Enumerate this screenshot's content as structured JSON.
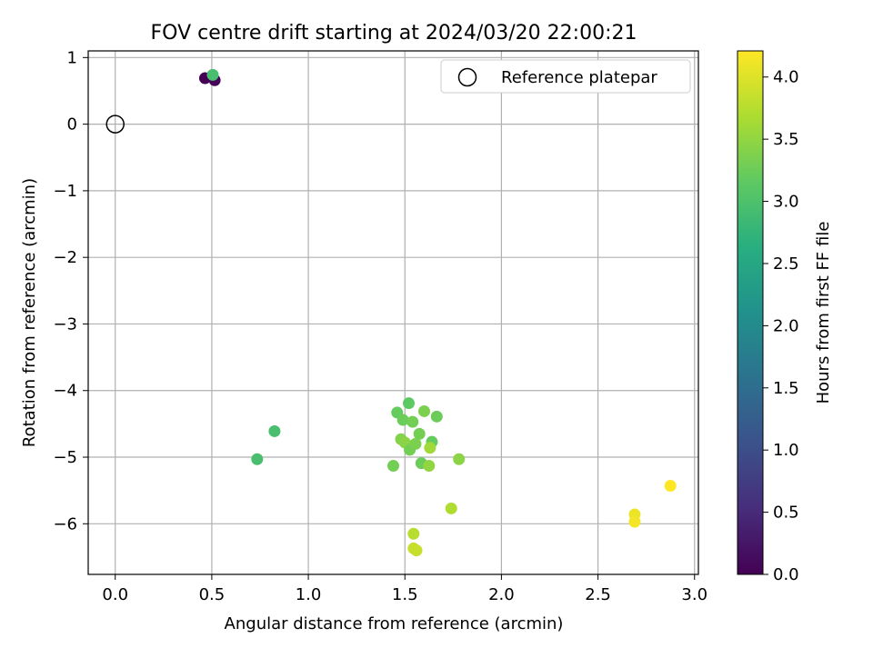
{
  "chart_data": {
    "type": "scatter",
    "title": "FOV centre drift starting at 2024/03/20 22:00:21",
    "xlabel": "Angular distance from reference (arcmin)",
    "ylabel": "Rotation from reference (arcmin)",
    "xlim": [
      -0.14,
      3.02
    ],
    "ylim": [
      -6.76,
      1.1
    ],
    "xticks": [
      0.0,
      0.5,
      1.0,
      1.5,
      2.0,
      2.5,
      3.0
    ],
    "xtick_labels": [
      "0.0",
      "0.5",
      "1.0",
      "1.5",
      "2.0",
      "2.5",
      "3.0"
    ],
    "yticks": [
      1,
      0,
      -1,
      -2,
      -3,
      -4,
      -5,
      -6
    ],
    "ytick_labels": [
      "1",
      "0",
      "−1",
      "−2",
      "−3",
      "−4",
      "−5",
      "−6"
    ],
    "grid": true,
    "legend": {
      "position": "top-right",
      "entries": [
        "Reference platepar"
      ]
    },
    "reference_point": {
      "x": 0.0,
      "y": 0.0
    },
    "colorbar": {
      "label": "Hours from first FF file",
      "colormap": "viridis",
      "range": [
        0.0,
        4.21
      ],
      "ticks": [
        0.0,
        0.5,
        1.0,
        1.5,
        2.0,
        2.5,
        3.0,
        3.5,
        4.0
      ],
      "tick_labels": [
        "0.0",
        "0.5",
        "1.0",
        "1.5",
        "2.0",
        "2.5",
        "3.0",
        "3.5",
        "4.0"
      ]
    },
    "points": [
      {
        "x": 0.465,
        "y": 0.69,
        "c": 0.0
      },
      {
        "x": 0.515,
        "y": 0.66,
        "c": 0.05
      },
      {
        "x": 0.505,
        "y": 0.74,
        "c": 2.95
      },
      {
        "x": 0.825,
        "y": -4.61,
        "c": 2.95
      },
      {
        "x": 0.735,
        "y": -5.03,
        "c": 2.95
      },
      {
        "x": 1.52,
        "y": -4.19,
        "c": 3.15
      },
      {
        "x": 1.46,
        "y": -4.33,
        "c": 3.2
      },
      {
        "x": 1.49,
        "y": -4.44,
        "c": 3.25
      },
      {
        "x": 1.54,
        "y": -4.47,
        "c": 3.3
      },
      {
        "x": 1.6,
        "y": -4.31,
        "c": 3.35
      },
      {
        "x": 1.665,
        "y": -4.39,
        "c": 3.25
      },
      {
        "x": 1.575,
        "y": -4.65,
        "c": 3.3
      },
      {
        "x": 1.48,
        "y": -4.73,
        "c": 3.4
      },
      {
        "x": 1.5,
        "y": -4.78,
        "c": 3.45
      },
      {
        "x": 1.525,
        "y": -4.89,
        "c": 3.3
      },
      {
        "x": 1.555,
        "y": -4.8,
        "c": 3.35
      },
      {
        "x": 1.64,
        "y": -4.77,
        "c": 3.2
      },
      {
        "x": 1.63,
        "y": -4.86,
        "c": 3.6
      },
      {
        "x": 1.44,
        "y": -5.13,
        "c": 3.3
      },
      {
        "x": 1.585,
        "y": -5.09,
        "c": 3.25
      },
      {
        "x": 1.625,
        "y": -5.13,
        "c": 3.5
      },
      {
        "x": 1.78,
        "y": -5.03,
        "c": 3.45
      },
      {
        "x": 1.74,
        "y": -5.77,
        "c": 3.7
      },
      {
        "x": 1.545,
        "y": -6.15,
        "c": 3.75
      },
      {
        "x": 1.545,
        "y": -6.37,
        "c": 3.85
      },
      {
        "x": 1.56,
        "y": -6.4,
        "c": 3.85
      },
      {
        "x": 2.69,
        "y": -5.86,
        "c": 4.1
      },
      {
        "x": 2.69,
        "y": -5.97,
        "c": 4.15
      },
      {
        "x": 2.875,
        "y": -5.43,
        "c": 4.21
      }
    ]
  }
}
